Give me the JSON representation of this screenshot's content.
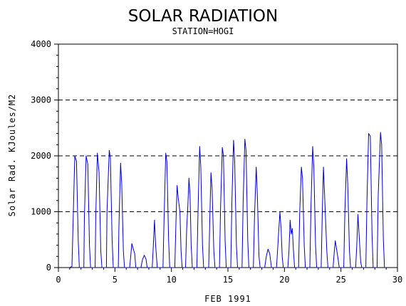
{
  "chart_data": {
    "type": "line",
    "title": "SOLAR RADIATION",
    "subtitle": "STATION=HOGI",
    "xlabel": "FEB 1991",
    "ylabel": "Solar Rad. KJoules/M2",
    "xlim": [
      0,
      30
    ],
    "ylim": [
      0,
      4000
    ],
    "x_ticks": [
      0,
      5,
      10,
      15,
      20,
      25,
      30
    ],
    "y_ticks": [
      0,
      1000,
      2000,
      3000,
      4000
    ],
    "grid": "horizontal-dashed",
    "colors": {
      "series": "#0000cc",
      "axis": "#000000"
    },
    "series": [
      {
        "points": [
          [
            1.0,
            0
          ],
          [
            1.2,
            20
          ],
          [
            1.3,
            800
          ],
          [
            1.45,
            2000
          ],
          [
            1.6,
            1900
          ],
          [
            1.75,
            500
          ],
          [
            1.85,
            0
          ],
          [
            2.25,
            0
          ],
          [
            2.3,
            900
          ],
          [
            2.45,
            2000
          ],
          [
            2.6,
            1850
          ],
          [
            2.75,
            400
          ],
          [
            2.85,
            0
          ],
          [
            3.25,
            0
          ],
          [
            3.3,
            900
          ],
          [
            3.45,
            2050
          ],
          [
            3.6,
            1700
          ],
          [
            3.75,
            300
          ],
          [
            3.85,
            0
          ],
          [
            4.25,
            0
          ],
          [
            4.3,
            1000
          ],
          [
            4.5,
            2100
          ],
          [
            4.6,
            1950
          ],
          [
            4.75,
            500
          ],
          [
            4.85,
            0
          ],
          [
            5.3,
            0
          ],
          [
            5.35,
            700
          ],
          [
            5.5,
            1870
          ],
          [
            5.6,
            1500
          ],
          [
            5.75,
            300
          ],
          [
            5.85,
            0
          ],
          [
            6.3,
            0
          ],
          [
            6.4,
            200
          ],
          [
            6.5,
            430
          ],
          [
            6.6,
            350
          ],
          [
            6.75,
            250
          ],
          [
            6.85,
            0
          ],
          [
            7.3,
            0
          ],
          [
            7.45,
            150
          ],
          [
            7.6,
            220
          ],
          [
            7.75,
            150
          ],
          [
            7.85,
            0
          ],
          [
            8.3,
            0
          ],
          [
            8.4,
            400
          ],
          [
            8.5,
            850
          ],
          [
            8.6,
            400
          ],
          [
            8.75,
            0
          ],
          [
            9.25,
            0
          ],
          [
            9.35,
            900
          ],
          [
            9.5,
            2050
          ],
          [
            9.6,
            1900
          ],
          [
            9.75,
            500
          ],
          [
            9.85,
            0
          ],
          [
            10.3,
            0
          ],
          [
            10.4,
            800
          ],
          [
            10.5,
            1470
          ],
          [
            10.6,
            1250
          ],
          [
            10.75,
            1000
          ],
          [
            10.85,
            300
          ],
          [
            10.95,
            0
          ],
          [
            11.25,
            0
          ],
          [
            11.35,
            700
          ],
          [
            11.45,
            1100
          ],
          [
            11.55,
            1600
          ],
          [
            11.65,
            1300
          ],
          [
            11.75,
            400
          ],
          [
            11.85,
            0
          ],
          [
            12.25,
            0
          ],
          [
            12.35,
            1000
          ],
          [
            12.5,
            2170
          ],
          [
            12.6,
            1800
          ],
          [
            12.75,
            400
          ],
          [
            12.85,
            0
          ],
          [
            13.3,
            0
          ],
          [
            13.4,
            900
          ],
          [
            13.5,
            1700
          ],
          [
            13.6,
            1400
          ],
          [
            13.75,
            300
          ],
          [
            13.85,
            0
          ],
          [
            14.25,
            0
          ],
          [
            14.35,
            1100
          ],
          [
            14.5,
            2150
          ],
          [
            14.6,
            2000
          ],
          [
            14.75,
            500
          ],
          [
            14.85,
            0
          ],
          [
            15.25,
            0
          ],
          [
            15.35,
            1200
          ],
          [
            15.5,
            2280
          ],
          [
            15.6,
            1900
          ],
          [
            15.75,
            400
          ],
          [
            15.85,
            0
          ],
          [
            16.25,
            0
          ],
          [
            16.35,
            1200
          ],
          [
            16.5,
            2300
          ],
          [
            16.6,
            2100
          ],
          [
            16.75,
            500
          ],
          [
            16.85,
            0
          ],
          [
            17.25,
            0
          ],
          [
            17.35,
            900
          ],
          [
            17.5,
            1800
          ],
          [
            17.6,
            1300
          ],
          [
            17.75,
            200
          ],
          [
            17.85,
            0
          ],
          [
            18.25,
            0
          ],
          [
            18.4,
            200
          ],
          [
            18.55,
            330
          ],
          [
            18.7,
            250
          ],
          [
            18.85,
            0
          ],
          [
            19.3,
            0
          ],
          [
            19.45,
            500
          ],
          [
            19.6,
            1000
          ],
          [
            19.7,
            700
          ],
          [
            19.8,
            200
          ],
          [
            19.9,
            0
          ],
          [
            20.3,
            0
          ],
          [
            20.4,
            300
          ],
          [
            20.5,
            850
          ],
          [
            20.6,
            600
          ],
          [
            20.7,
            700
          ],
          [
            20.8,
            300
          ],
          [
            20.9,
            0
          ],
          [
            21.25,
            0
          ],
          [
            21.35,
            1000
          ],
          [
            21.5,
            1800
          ],
          [
            21.6,
            1600
          ],
          [
            21.75,
            400
          ],
          [
            21.85,
            0
          ],
          [
            22.25,
            0
          ],
          [
            22.35,
            1100
          ],
          [
            22.5,
            2170
          ],
          [
            22.6,
            1800
          ],
          [
            22.75,
            400
          ],
          [
            22.85,
            0
          ],
          [
            23.25,
            0
          ],
          [
            23.35,
            1000
          ],
          [
            23.45,
            1800
          ],
          [
            23.55,
            1300
          ],
          [
            23.75,
            300
          ],
          [
            23.85,
            0
          ],
          [
            24.3,
            0
          ],
          [
            24.4,
            250
          ],
          [
            24.5,
            480
          ],
          [
            24.6,
            350
          ],
          [
            24.75,
            150
          ],
          [
            24.85,
            0
          ],
          [
            25.25,
            0
          ],
          [
            25.35,
            1000
          ],
          [
            25.5,
            1950
          ],
          [
            25.6,
            1500
          ],
          [
            25.75,
            300
          ],
          [
            25.85,
            0
          ],
          [
            26.3,
            0
          ],
          [
            26.4,
            400
          ],
          [
            26.5,
            950
          ],
          [
            26.6,
            600
          ],
          [
            26.75,
            100
          ],
          [
            26.85,
            0
          ],
          [
            27.2,
            0
          ],
          [
            27.3,
            1200
          ],
          [
            27.45,
            2400
          ],
          [
            27.6,
            2350
          ],
          [
            27.75,
            600
          ],
          [
            27.85,
            0
          ],
          [
            28.2,
            0
          ],
          [
            28.3,
            1300
          ],
          [
            28.5,
            2420
          ],
          [
            28.6,
            2200
          ],
          [
            28.75,
            500
          ],
          [
            28.85,
            0
          ],
          [
            29.0,
            0
          ]
        ]
      }
    ]
  }
}
